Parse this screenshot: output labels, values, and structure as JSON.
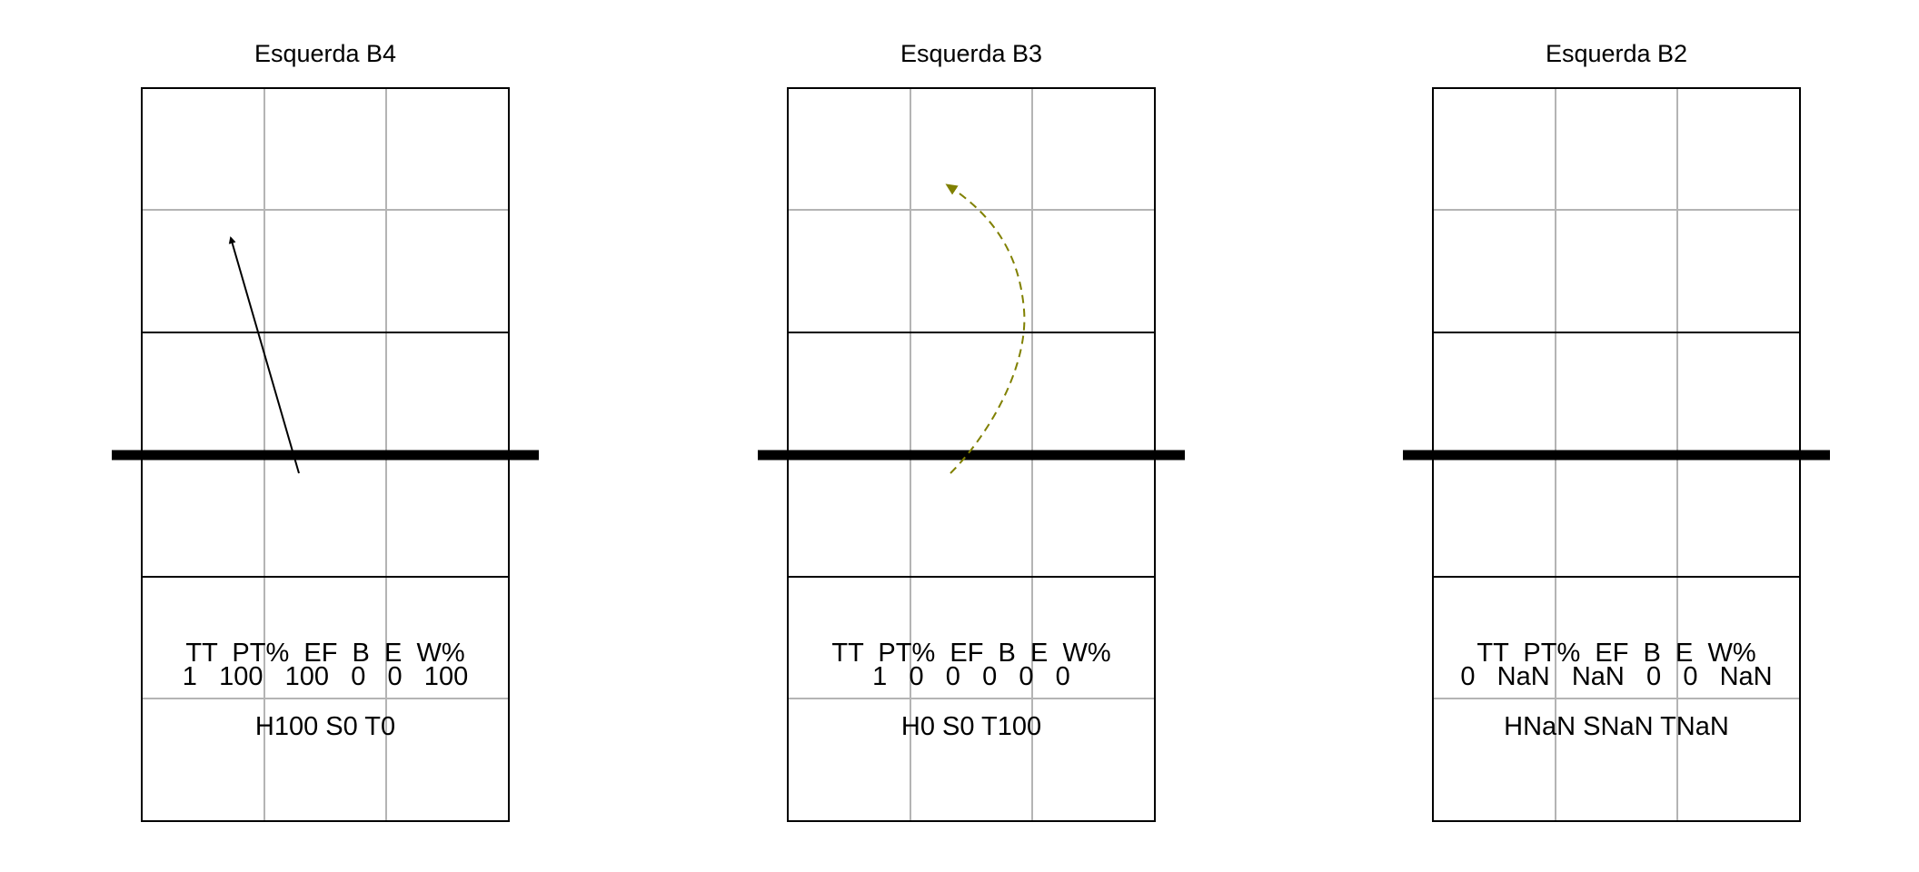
{
  "panels": [
    {
      "title": "Esquerda B4",
      "stats_header": "TT  PT%  EF  B  E  W%",
      "stats_values": "1   100   100   0   0   100",
      "summary": "H100 S0 T0",
      "arrow": {
        "style": "solid",
        "color": "#000000"
      }
    },
    {
      "title": "Esquerda B3",
      "stats_header": "TT  PT%  EF  B  E  W%",
      "stats_values": "1   0   0   0   0   0",
      "summary": "H0 S0 T100",
      "arrow": {
        "style": "dashed-curve",
        "color": "#808000"
      }
    },
    {
      "title": "Esquerda B2",
      "stats_header": "TT  PT%  EF  B  E  W%",
      "stats_values": "0   NaN   NaN   0   0   NaN",
      "summary": "HNaN SNaN TNaN",
      "arrow": null
    }
  ]
}
